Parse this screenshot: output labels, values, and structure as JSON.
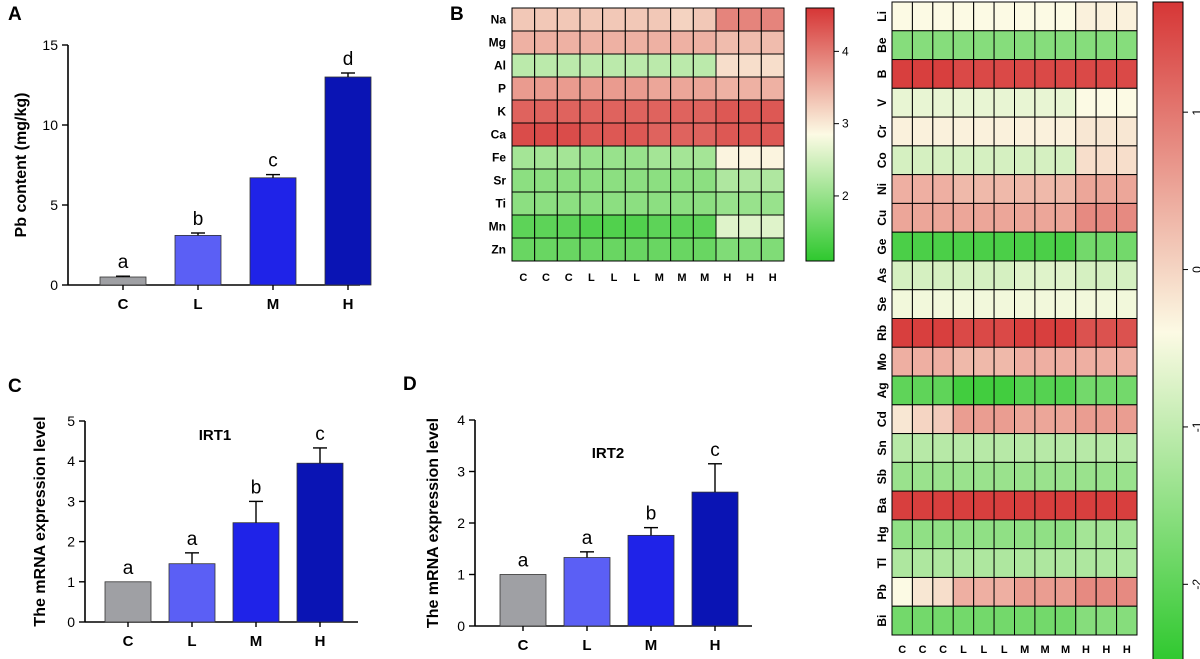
{
  "panel_letters": [
    "A",
    "B",
    "C",
    "D"
  ],
  "chart_data": [
    {
      "panel": "A",
      "type": "bar",
      "title": "",
      "categories": [
        "C",
        "L",
        "M",
        "H"
      ],
      "values": [
        0.5,
        3.1,
        6.7,
        13.0
      ],
      "errors": [
        0.05,
        0.15,
        0.2,
        0.25
      ],
      "significance": [
        "a",
        "b",
        "c",
        "d"
      ],
      "colors": [
        "#9fa0a4",
        "#5b5ff5",
        "#1f23e8",
        "#0a14b4"
      ],
      "ylabel": "Pb content (mg/kg)",
      "ylim": [
        0,
        15
      ],
      "yticks": [
        "0",
        "5",
        "10",
        "15"
      ]
    },
    {
      "panel": "B",
      "type": "heatmap",
      "rows": [
        "Na",
        "Mg",
        "Al",
        "P",
        "K",
        "Ca",
        "Fe",
        "Sr",
        "Ti",
        "Mn",
        "Zn"
      ],
      "columns": [
        "C",
        "C",
        "C",
        "L",
        "L",
        "L",
        "M",
        "M",
        "M",
        "H",
        "H",
        "H"
      ],
      "values": [
        [
          3.3,
          3.3,
          3.3,
          3.3,
          3.3,
          3.3,
          3.3,
          3.2,
          3.3,
          3.9,
          3.9,
          3.9
        ],
        [
          3.5,
          3.5,
          3.5,
          3.5,
          3.5,
          3.5,
          3.5,
          3.5,
          3.5,
          3.4,
          3.4,
          3.4
        ],
        [
          2.3,
          2.3,
          2.3,
          2.3,
          2.3,
          2.3,
          2.3,
          2.3,
          2.3,
          3.1,
          3.1,
          3.1
        ],
        [
          3.7,
          3.7,
          3.7,
          3.7,
          3.7,
          3.7,
          3.6,
          3.6,
          3.6,
          3.5,
          3.5,
          3.5
        ],
        [
          4.2,
          4.2,
          4.2,
          4.2,
          4.2,
          4.2,
          4.2,
          4.2,
          4.2,
          4.3,
          4.3,
          4.3
        ],
        [
          4.4,
          4.4,
          4.4,
          4.3,
          4.3,
          4.3,
          4.2,
          4.2,
          4.2,
          4.3,
          4.3,
          4.3
        ],
        [
          2.1,
          2.1,
          2.1,
          2.0,
          2.0,
          2.0,
          2.1,
          2.1,
          2.1,
          2.9,
          2.9,
          2.9
        ],
        [
          1.9,
          1.9,
          1.9,
          1.9,
          1.9,
          1.9,
          1.9,
          1.9,
          1.9,
          2.2,
          2.2,
          2.2
        ],
        [
          1.9,
          1.9,
          1.9,
          1.9,
          1.9,
          1.9,
          1.9,
          1.9,
          1.9,
          2.0,
          2.0,
          2.0
        ],
        [
          1.5,
          1.5,
          1.5,
          1.4,
          1.4,
          1.4,
          1.5,
          1.5,
          1.5,
          2.6,
          2.6,
          2.6
        ],
        [
          1.6,
          1.6,
          1.6,
          1.6,
          1.6,
          1.6,
          1.6,
          1.6,
          1.6,
          1.8,
          1.8,
          1.8
        ]
      ],
      "colorbar": {
        "min": 1.1,
        "max": 4.6,
        "ticks": [
          "2",
          "3",
          "4"
        ]
      }
    },
    {
      "panel": "B2",
      "type": "heatmap",
      "rows": [
        "Li",
        "Be",
        "B",
        "V",
        "Cr",
        "Co",
        "Ni",
        "Cu",
        "Ge",
        "As",
        "Se",
        "Rb",
        "Mo",
        "Ag",
        "Cd",
        "Sn",
        "Sb",
        "Ba",
        "Hg",
        "Tl",
        "Pb",
        "Bi"
      ],
      "columns": [
        "C",
        "C",
        "C",
        "L",
        "L",
        "L",
        "M",
        "M",
        "M",
        "H",
        "H",
        "H"
      ],
      "values": [
        [
          -0.4,
          -0.4,
          -0.4,
          -0.4,
          -0.4,
          -0.4,
          -0.4,
          -0.4,
          -0.4,
          -0.3,
          -0.3,
          -0.3
        ],
        [
          -1.6,
          -1.6,
          -1.6,
          -1.6,
          -1.6,
          -1.6,
          -1.6,
          -1.6,
          -1.6,
          -1.6,
          -1.6,
          -1.6
        ],
        [
          1.6,
          1.6,
          1.6,
          1.5,
          1.5,
          1.5,
          1.5,
          1.5,
          1.5,
          1.5,
          1.5,
          1.5
        ],
        [
          -0.6,
          -0.6,
          -0.6,
          -0.6,
          -0.6,
          -0.6,
          -0.6,
          -0.6,
          -0.6,
          -0.4,
          -0.4,
          -0.4
        ],
        [
          -0.3,
          -0.3,
          -0.3,
          -0.3,
          -0.3,
          -0.3,
          -0.3,
          -0.3,
          -0.3,
          -0.2,
          -0.2,
          -0.2
        ],
        [
          -0.8,
          -0.8,
          -0.8,
          -0.8,
          -0.8,
          -0.8,
          -0.8,
          -0.8,
          -0.8,
          -0.1,
          -0.1,
          -0.1
        ],
        [
          0.4,
          0.4,
          0.4,
          0.3,
          0.3,
          0.3,
          0.3,
          0.3,
          0.3,
          0.5,
          0.5,
          0.5
        ],
        [
          0.5,
          0.5,
          0.5,
          0.5,
          0.5,
          0.5,
          0.5,
          0.5,
          0.5,
          0.8,
          0.8,
          0.8
        ],
        [
          -2.2,
          -2.2,
          -2.2,
          -2.2,
          -2.2,
          -2.2,
          -2.2,
          -2.2,
          -2.2,
          -1.8,
          -1.8,
          -1.8
        ],
        [
          -0.8,
          -0.8,
          -0.8,
          -0.8,
          -0.8,
          -0.8,
          -0.7,
          -0.7,
          -0.7,
          -0.8,
          -0.8,
          -0.8
        ],
        [
          -0.5,
          -0.5,
          -0.5,
          -0.5,
          -0.5,
          -0.5,
          -0.5,
          -0.5,
          -0.5,
          -0.5,
          -0.5,
          -0.5
        ],
        [
          1.6,
          1.6,
          1.6,
          1.5,
          1.5,
          1.5,
          1.6,
          1.6,
          1.6,
          1.4,
          1.4,
          1.4
        ],
        [
          0.4,
          0.4,
          0.4,
          0.3,
          0.3,
          0.3,
          0.4,
          0.4,
          0.4,
          0.4,
          0.4,
          0.4
        ],
        [
          -2.0,
          -2.0,
          -2.0,
          -2.3,
          -2.3,
          -2.3,
          -2.1,
          -2.1,
          -2.1,
          -1.8,
          -1.8,
          -1.8
        ],
        [
          -0.2,
          0.0,
          0.1,
          0.6,
          0.6,
          0.6,
          0.5,
          0.5,
          0.5,
          0.6,
          0.6,
          0.6
        ],
        [
          -1.1,
          -1.1,
          -1.1,
          -1.1,
          -1.1,
          -1.1,
          -1.1,
          -1.1,
          -1.1,
          -1.1,
          -1.1,
          -1.1
        ],
        [
          -1.4,
          -1.4,
          -1.4,
          -1.4,
          -1.4,
          -1.4,
          -1.4,
          -1.4,
          -1.4,
          -1.4,
          -1.4,
          -1.4
        ],
        [
          1.6,
          1.6,
          1.6,
          1.6,
          1.6,
          1.6,
          1.6,
          1.6,
          1.6,
          1.6,
          1.6,
          1.6
        ],
        [
          -1.5,
          -1.5,
          -1.5,
          -1.5,
          -1.5,
          -1.5,
          -1.5,
          -1.5,
          -1.5,
          -1.3,
          -1.3,
          -1.3
        ],
        [
          -1.2,
          -1.2,
          -1.2,
          -1.2,
          -1.2,
          -1.2,
          -1.2,
          -1.2,
          -1.2,
          -1.2,
          -1.2,
          -1.2
        ],
        [
          -0.4,
          -0.2,
          -0.1,
          0.4,
          0.4,
          0.4,
          0.6,
          0.6,
          0.6,
          0.8,
          0.8,
          0.8
        ],
        [
          -1.8,
          -1.8,
          -1.8,
          -1.8,
          -1.8,
          -1.8,
          -1.8,
          -1.8,
          -1.8,
          -1.6,
          -1.6,
          -1.6
        ]
      ],
      "colorbar": {
        "min": -2.5,
        "max": 1.7,
        "ticks": [
          "1",
          "0",
          "-1",
          "-2"
        ]
      }
    },
    {
      "panel": "C",
      "type": "bar",
      "title": "IRT1",
      "categories": [
        "C",
        "L",
        "M",
        "H"
      ],
      "values": [
        1.0,
        1.45,
        2.47,
        3.95
      ],
      "errors": [
        0.0,
        0.27,
        0.53,
        0.38
      ],
      "significance": [
        "a",
        "a",
        "b",
        "c"
      ],
      "colors": [
        "#9fa0a4",
        "#5b5ff5",
        "#1f23e8",
        "#0a14b4"
      ],
      "ylabel": "The mRNA expression level",
      "ylim": [
        0,
        5
      ],
      "yticks": [
        "0",
        "1",
        "2",
        "3",
        "4",
        "5"
      ]
    },
    {
      "panel": "D",
      "type": "bar",
      "title": "IRT2",
      "categories": [
        "C",
        "L",
        "M",
        "H"
      ],
      "values": [
        1.0,
        1.33,
        1.76,
        2.6
      ],
      "errors": [
        0.0,
        0.11,
        0.15,
        0.55
      ],
      "significance": [
        "a",
        "a",
        "b",
        "c"
      ],
      "colors": [
        "#9fa0a4",
        "#5b5ff5",
        "#1f23e8",
        "#0a14b4"
      ],
      "ylabel": "The mRNA expression level",
      "ylim": [
        0,
        4
      ],
      "yticks": [
        "0",
        "1",
        "2",
        "3",
        "4"
      ]
    }
  ]
}
